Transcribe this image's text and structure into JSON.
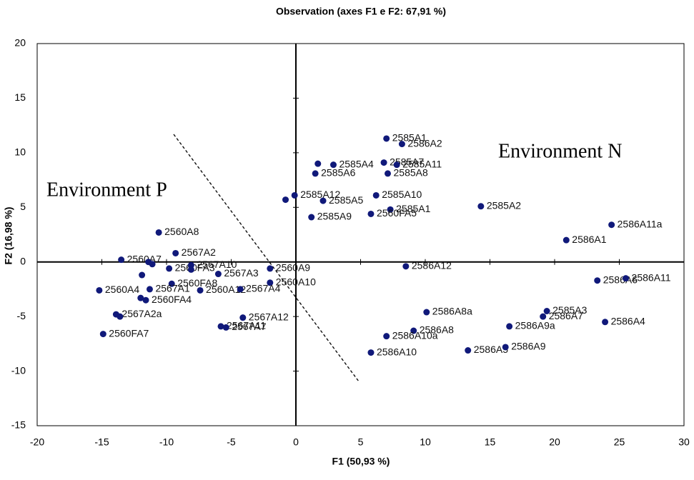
{
  "chart_data": {
    "type": "scatter",
    "title": "Observation (axes F1 e F2: 67,91 %)",
    "x_label": "F1 (50,93 %)",
    "y_label": "F2 (16,98 %)",
    "annotations": [
      "Environment N",
      "Environment P"
    ],
    "xlim": [
      -20,
      30
    ],
    "ylim": [
      -15,
      20
    ],
    "xticks": [
      -20,
      -15,
      -10,
      -5,
      0,
      5,
      10,
      15,
      20,
      25,
      30
    ],
    "yticks": [
      -15,
      -10,
      -5,
      0,
      5,
      10,
      15,
      20
    ],
    "color": "#10197a",
    "x": [
      7.0,
      8.2,
      1.7,
      2.9,
      6.8,
      7.8,
      1.5,
      7.1,
      -0.1,
      6.2,
      -0.8,
      2.1,
      7.3,
      5.8,
      1.2,
      14.3,
      24.4,
      20.9,
      8.5,
      23.3,
      25.5,
      19.4,
      19.1,
      23.9,
      16.5,
      10.1,
      9.1,
      7.0,
      5.8,
      13.3,
      16.2,
      -10.6,
      -9.3,
      -13.5,
      -11.4,
      -11.1,
      -9.8,
      -8.1,
      -8.1,
      -6.0,
      -2.0,
      -11.9,
      -9.6,
      -7.4,
      -2.0,
      -4.3,
      -15.2,
      -11.3,
      -12.0,
      -11.6,
      -13.9,
      -13.6,
      -14.9,
      -4.1,
      -5.8,
      -5.4
    ],
    "values": [
      11.3,
      10.8,
      9.0,
      8.9,
      9.1,
      8.9,
      8.1,
      8.1,
      6.1,
      6.1,
      5.7,
      5.6,
      4.8,
      4.4,
      4.1,
      5.1,
      3.4,
      2.0,
      -0.4,
      -1.7,
      -1.5,
      -4.5,
      -5.0,
      -5.5,
      -5.9,
      -4.6,
      -6.3,
      -6.8,
      -8.3,
      -8.1,
      -7.8,
      2.7,
      0.8,
      0.2,
      0.0,
      -0.2,
      -0.6,
      -0.3,
      -0.7,
      -1.1,
      -0.6,
      -1.2,
      -2.0,
      -2.6,
      -1.9,
      -2.5,
      -2.6,
      -2.5,
      -3.3,
      -3.5,
      -4.8,
      -5.0,
      -6.6,
      -5.1,
      -5.9,
      -6.0
    ],
    "point_labels": [
      "2585A1",
      "2586A2",
      null,
      "2585A4",
      "2585A7",
      "2585A11",
      "2585A6",
      "2585A8",
      "2585A12",
      "2585A10",
      null,
      "2585A5",
      "2585A1",
      "2560FA5",
      "2585A9",
      "2585A2",
      "2586A11a",
      "2586A1",
      "2586A12",
      "2586A6",
      "2586A11",
      "2585A3",
      "2586A7",
      "2586A4",
      "2586A9a",
      "2586A8a",
      "2586A8",
      "2586A10a",
      "2586A10",
      "2586A5",
      "2586A9",
      "2560A8",
      "2567A2",
      "2560A7",
      null,
      null,
      "2560FA3",
      "2567A10",
      null,
      "2567A3",
      "2560A9",
      null,
      "2560FA8",
      "2560A12",
      "2560A10",
      "2567A4",
      "2560A4",
      "2567A1",
      null,
      "2560FA4",
      "2567A2a",
      null,
      "2560FA7",
      "2567A12",
      "2567A11",
      "2567A7"
    ]
  }
}
